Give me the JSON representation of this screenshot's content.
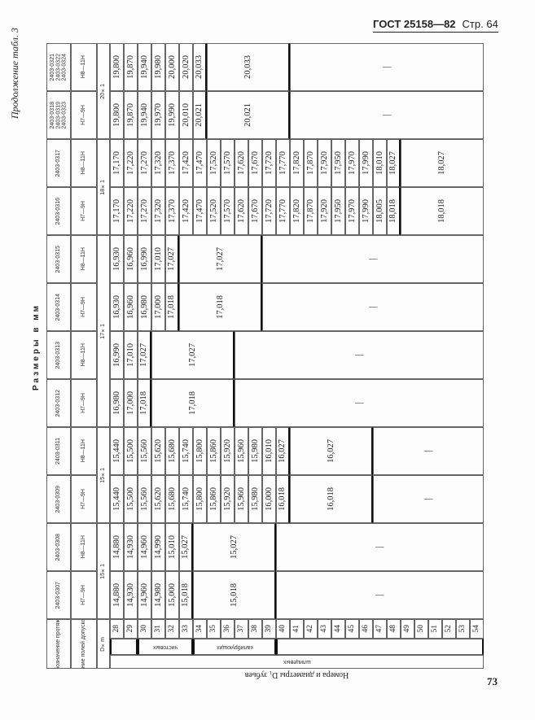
{
  "page": {
    "standard": "ГОСТ 25158—82",
    "page_label": "Стр. 64",
    "continuation": "Продолжение табл. 3",
    "units": "Размеры в мм",
    "page_number": "73"
  },
  "table": {
    "header_labels": {
      "designation": "Обозначение протяжки",
      "tolerance": "Сочетание полей допусков D и d",
      "dxm": "D×m"
    },
    "rows": [
      "28",
      "29",
      "30",
      "31",
      "32",
      "33",
      "34",
      "35",
      "36",
      "37",
      "38",
      "39",
      "40",
      "41",
      "42",
      "43",
      "44",
      "45",
      "46",
      "47",
      "48",
      "49",
      "50",
      "51",
      "52",
      "53",
      "54"
    ],
    "row_groups": [
      {
        "label": "чистовых",
        "from": 30,
        "to": 33
      },
      {
        "label": "калибрующих",
        "from": 34,
        "to": 39
      }
    ],
    "spline_label": "шлицевых",
    "footer_label": "Номера и диаметры D₁ зубьев",
    "dash": "—",
    "dxm_groups": [
      {
        "label": "15×1",
        "columns": [
          0,
          1
        ]
      },
      {
        "label": "15×1",
        "columns": [
          2,
          3
        ]
      },
      {
        "label": "17×1",
        "columns": [
          4,
          7
        ]
      },
      {
        "label": "18×1",
        "columns": [
          8,
          9
        ]
      },
      {
        "label": "20×1",
        "columns": [
          10,
          11
        ]
      }
    ],
    "columns": [
      {
        "designation": [
          "2403-0307"
        ],
        "tolerance": "H7—9H",
        "values": [
          "14,880",
          "14,930",
          "14,960",
          "14,980",
          "15,000",
          "15,018"
        ],
        "merged": {
          "value": "15,018",
          "to": 39
        }
      },
      {
        "designation": [
          "2403-0308"
        ],
        "tolerance": "H8—11H",
        "values": [
          "14,880",
          "14,930",
          "14,960",
          "14,990",
          "15,010",
          "15,027"
        ],
        "merged": {
          "value": "15,027",
          "to": 39
        }
      },
      {
        "designation": [
          "2403-0309"
        ],
        "tolerance": "H7—9H",
        "values": [
          "15,440",
          "15,500",
          "15,560",
          "15,620",
          "15,680",
          "15,740",
          "15,800",
          "15,860",
          "15,920",
          "15,960",
          "15,980",
          "16,000",
          "16,018"
        ],
        "merged": {
          "value": "16,018",
          "to": 46
        }
      },
      {
        "designation": [
          "2403-0311"
        ],
        "tolerance": "H8—11H",
        "values": [
          "15,440",
          "15,500",
          "15,560",
          "15,620",
          "15,680",
          "15,740",
          "15,800",
          "15,860",
          "15,920",
          "15,960",
          "15,980",
          "16,010",
          "16,027"
        ],
        "merged": {
          "value": "16,027",
          "to": 46
        }
      },
      {
        "designation": [
          "2403-0312"
        ],
        "tolerance": "H7—9H",
        "values": [
          "16,980",
          "17,000",
          "17,018"
        ],
        "merged": {
          "value": "17,018",
          "to": 36
        }
      },
      {
        "designation": [
          "2403-0313"
        ],
        "tolerance": "H8—11H",
        "values": [
          "16,990",
          "17,010",
          "17,027"
        ],
        "merged": {
          "value": "17,027",
          "to": 36
        }
      },
      {
        "designation": [
          "2403-0314"
        ],
        "tolerance": "H7—9H",
        "values": [
          "16,930",
          "16,960",
          "16,980",
          "17,000",
          "17,018"
        ],
        "merged": {
          "value": "17,018",
          "to": 38
        }
      },
      {
        "designation": [
          "2403-0315"
        ],
        "tolerance": "H8—11H",
        "values": [
          "16,930",
          "16,960",
          "16,990",
          "17,010",
          "17,027"
        ],
        "merged": {
          "value": "17,027",
          "to": 38
        }
      },
      {
        "designation": [
          "2403-0316"
        ],
        "tolerance": "H7—9H",
        "values": [
          "17,170",
          "17,220",
          "17,270",
          "17,320",
          "17,370",
          "17,420",
          "17,470",
          "17,520",
          "17,570",
          "17,620",
          "17,670",
          "17,720",
          "17,770",
          "17,820",
          "17,870",
          "17,920",
          "17,950",
          "17,970",
          "17,990",
          "18,005",
          "18,018"
        ],
        "merged": {
          "value": "18,018",
          "to": 54
        }
      },
      {
        "designation": [
          "2403-0317"
        ],
        "tolerance": "H8—11H",
        "values": [
          "17,170",
          "17,220",
          "17,270",
          "17,320",
          "17,370",
          "17,420",
          "17,470",
          "17,520",
          "17,570",
          "17,620",
          "17,670",
          "17,720",
          "17,770",
          "17,820",
          "17,870",
          "17,920",
          "17,950",
          "17,970",
          "17,990",
          "18,010",
          "18,027"
        ],
        "merged": {
          "value": "18,027",
          "to": 54
        }
      },
      {
        "designation": [
          "2403-0318",
          "2403-0319",
          "2403-0323"
        ],
        "tolerance": "H7—9H",
        "values": [
          "19,800",
          "19,870",
          "19,940",
          "19,970",
          "19,990",
          "20,010",
          "20,021"
        ],
        "merged": {
          "value": "20,021",
          "to": 40
        }
      },
      {
        "designation": [
          "2403-0321",
          "2403-0322",
          "2403-0324"
        ],
        "tolerance": "H8—11H",
        "values": [
          "19,800",
          "19,870",
          "19,940",
          "19,980",
          "20,000",
          "20,020",
          "20,033"
        ],
        "merged": {
          "value": "20,033",
          "to": 40
        }
      }
    ]
  }
}
